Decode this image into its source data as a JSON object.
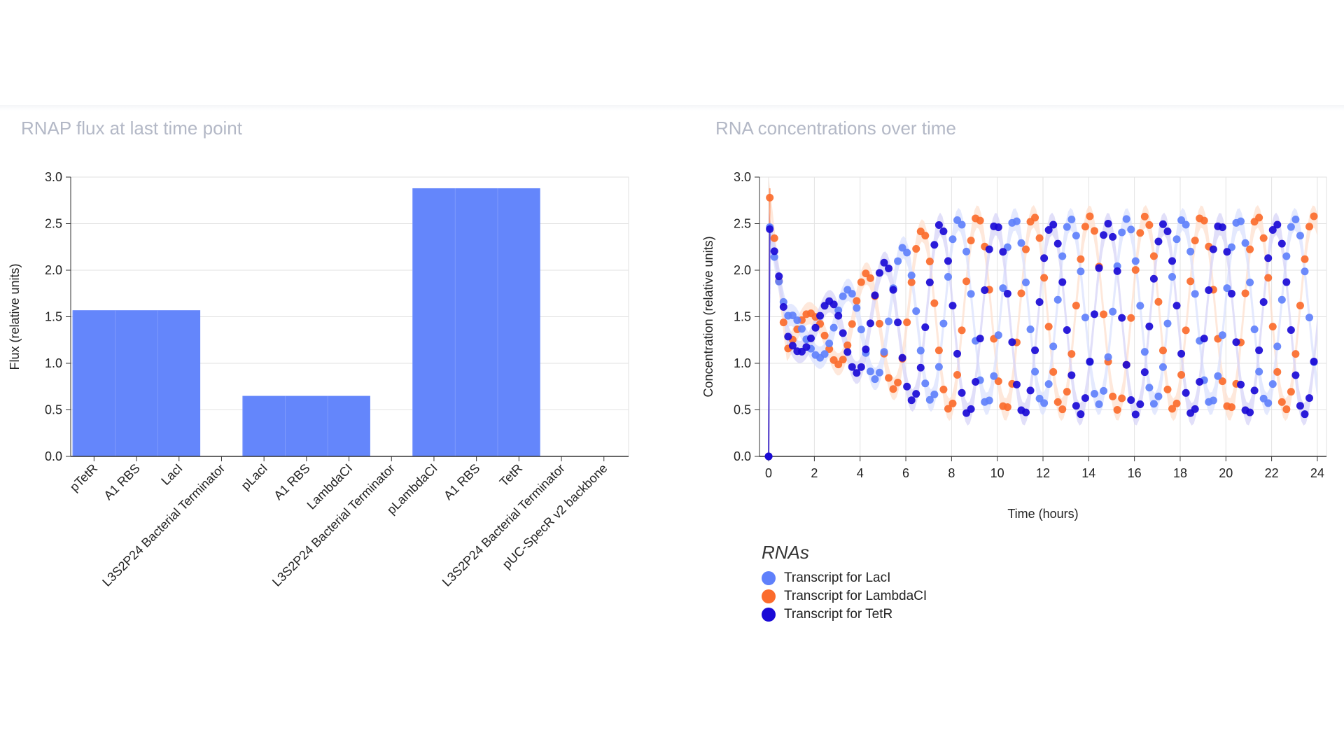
{
  "chart_data": [
    {
      "type": "bar",
      "title": "RNAP flux at last time point",
      "xlabel": "",
      "ylabel": "Flux (relative units)",
      "ylim": [
        0,
        3.0
      ],
      "yticks": [
        "0.0",
        "0.5",
        "1.0",
        "1.5",
        "2.0",
        "2.5",
        "3.0"
      ],
      "categories": [
        "pTetR",
        "A1 RBS",
        "LacI",
        "L3S2P24 Bacterial Terminator",
        "pLacI",
        "A1 RBS",
        "LambdaCI",
        "L3S2P24 Bacterial Terminator",
        "pLambdaCI",
        "A1 RBS",
        "TetR",
        "L3S2P24 Bacterial Terminator",
        "pUC-SpecR v2 backbone"
      ],
      "values": [
        1.57,
        1.57,
        1.57,
        0.0,
        0.65,
        0.65,
        0.65,
        0.0,
        2.88,
        2.88,
        2.88,
        0.0,
        0.0
      ],
      "bar_color": "#6486fb",
      "grid": true
    },
    {
      "type": "scatter",
      "title": "RNA concentrations over time",
      "xlabel": "Time (hours)",
      "ylabel": "Concentration (relative units)",
      "xlim": [
        -0.4,
        24.4
      ],
      "ylim": [
        0,
        3.0
      ],
      "xticks": [
        "0",
        "2",
        "4",
        "6",
        "8",
        "10",
        "12",
        "14",
        "16",
        "18",
        "20",
        "22",
        "24"
      ],
      "yticks": [
        "0.0",
        "0.5",
        "1.0",
        "1.5",
        "2.0",
        "2.5",
        "3.0"
      ],
      "grid": true,
      "legend_title": "RNAs",
      "legend_position": "bottom-left",
      "series": [
        {
          "name": "Transcript for LacI",
          "color": "#5f80fb",
          "band_color": "#dbe2fd",
          "period": 2.45,
          "phase": 0.35,
          "lo": 0.56,
          "hi": 2.55
        },
        {
          "name": "Transcript for LambdaCI",
          "color": "#fb6b2c",
          "band_color": "#fde0cf",
          "period": 2.45,
          "phase": 1.17,
          "lo": 0.5,
          "hi": 2.58
        },
        {
          "name": "Transcript for TetR",
          "color": "#1a0ad6",
          "band_color": "#d7d4f7",
          "period": 2.45,
          "phase": 1.98,
          "lo": 0.45,
          "hi": 2.5
        }
      ]
    }
  ]
}
